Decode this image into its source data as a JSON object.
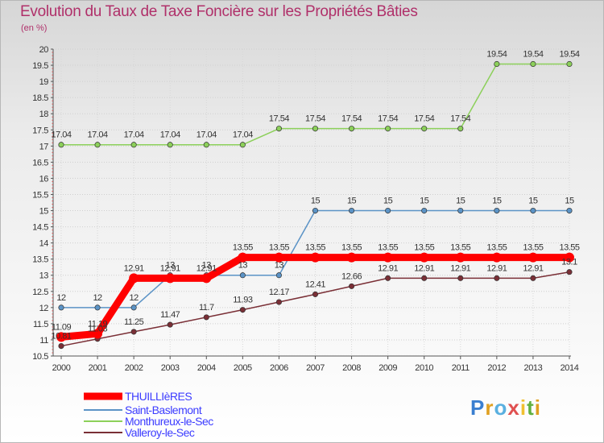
{
  "chart_data": {
    "type": "line",
    "title": "Evolution du Taux de Taxe Foncière sur les Propriétés Bâties",
    "ylabel": "(en %)",
    "x": [
      "2000",
      "2001",
      "2002",
      "2003",
      "2004",
      "2005",
      "2006",
      "2007",
      "2008",
      "2009",
      "2010",
      "2011",
      "2012",
      "2013",
      "2014"
    ],
    "ylim": [
      10.5,
      20
    ],
    "yticks": [
      "10.5",
      "11",
      "11.5",
      "12",
      "12.5",
      "13",
      "13.5",
      "14",
      "14.5",
      "15",
      "15.5",
      "16",
      "16.5",
      "17",
      "17.5",
      "18",
      "18.5",
      "19",
      "19.5",
      "20"
    ],
    "series": [
      {
        "name": "THUILLIèRES",
        "color": "#ff0000",
        "values": [
          11.09,
          11.19,
          12.91,
          12.91,
          12.91,
          13.55,
          13.55,
          13.55,
          13.55,
          13.55,
          13.55,
          13.55,
          13.55,
          13.55,
          13.55
        ],
        "labels": [
          "11.09",
          "11.19",
          "12.91",
          "12.91",
          "12.91",
          "13.55",
          "13.55",
          "13.55",
          "13.55",
          "13.55",
          "13.55",
          "13.55",
          "13.55",
          "13.55",
          "13.55"
        ]
      },
      {
        "name": "Saint-Baslemont",
        "color": "#5b93c6",
        "values": [
          12,
          12,
          12,
          13,
          13,
          13,
          13,
          15,
          15,
          15,
          15,
          15,
          15,
          15,
          15
        ],
        "labels": [
          "12",
          "12",
          "12",
          "13",
          "13",
          "13",
          "13",
          "15",
          "15",
          "15",
          "15",
          "15",
          "15",
          "15",
          "15"
        ]
      },
      {
        "name": "Monthureux-le-Sec",
        "color": "#8cd05a",
        "values": [
          17.04,
          17.04,
          17.04,
          17.04,
          17.04,
          17.04,
          17.54,
          17.54,
          17.54,
          17.54,
          17.54,
          17.54,
          19.54,
          19.54,
          19.54
        ],
        "labels": [
          "17.04",
          "17.04",
          "17.04",
          "17.04",
          "17.04",
          "17.04",
          "17.54",
          "17.54",
          "17.54",
          "17.54",
          "17.54",
          "17.54",
          "19.54",
          "19.54",
          "19.54"
        ]
      },
      {
        "name": "Valleroy-le-Sec",
        "color": "#7a2f36",
        "values": [
          10.81,
          11.03,
          11.25,
          11.47,
          11.7,
          11.93,
          12.17,
          12.41,
          12.66,
          12.91,
          12.91,
          12.91,
          12.91,
          12.91,
          13.1
        ],
        "labels": [
          "10.81",
          "11.03",
          "11.25",
          "11.47",
          "11.7",
          "11.93",
          "12.17",
          "12.41",
          "12.66",
          "12.91",
          "12.91",
          "12.91",
          "12.91",
          "12.91",
          "13.1"
        ]
      }
    ]
  },
  "logo": {
    "letters": [
      "P",
      "r",
      "o",
      "x",
      "i",
      "t",
      "i"
    ]
  },
  "colors": {
    "title": "#b0306a",
    "legend_text": "#3c3cff",
    "axis": "#333333"
  }
}
